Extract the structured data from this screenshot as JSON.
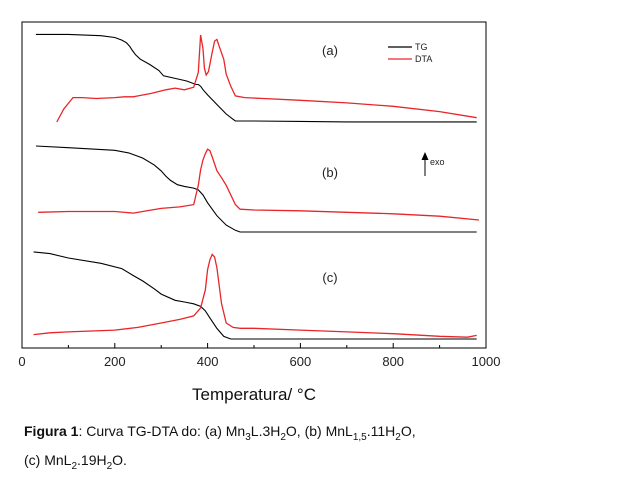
{
  "chart_data": {
    "type": "line",
    "xlabel": "Temperatura/ °C",
    "xlim": [
      0,
      1000
    ],
    "xticks": [
      "0",
      "200",
      "400",
      "600",
      "800",
      "1000"
    ],
    "xtick_values": [
      0,
      200,
      400,
      600,
      800,
      1000
    ],
    "legend": {
      "position": "top-right",
      "entries": [
        "TG",
        "DTA"
      ]
    },
    "series_colors": {
      "TG": "#000000",
      "DTA": "#e8262a"
    },
    "annotation": "exo",
    "panels": [
      {
        "label": "(a)",
        "TG": {
          "x": [
            30,
            100,
            170,
            200,
            215,
            225,
            232,
            238,
            245,
            255,
            275,
            295,
            305,
            330,
            355,
            375,
            380,
            385,
            390,
            400,
            420,
            440,
            455,
            460,
            500,
            600,
            700,
            800,
            900,
            980
          ],
          "y": [
            0.995,
            0.995,
            0.98,
            0.96,
            0.93,
            0.9,
            0.86,
            0.81,
            0.76,
            0.71,
            0.65,
            0.58,
            0.52,
            0.49,
            0.46,
            0.42,
            0.42,
            0.4,
            0.36,
            0.3,
            0.19,
            0.08,
            0.02,
            0.0,
            0.0,
            -0.005,
            -0.01,
            -0.01,
            -0.01,
            -0.01
          ]
        },
        "DTA": {
          "x": [
            75,
            90,
            110,
            130,
            160,
            200,
            220,
            240,
            250,
            280,
            310,
            330,
            350,
            370,
            380,
            385,
            390,
            393,
            397,
            402,
            410,
            415,
            420,
            425,
            435,
            440,
            450,
            460,
            480,
            520,
            600,
            700,
            800,
            900,
            980
          ],
          "y": [
            0.0,
            0.15,
            0.28,
            0.28,
            0.27,
            0.28,
            0.29,
            0.29,
            0.3,
            0.33,
            0.37,
            0.39,
            0.37,
            0.4,
            0.57,
            1.0,
            0.84,
            0.62,
            0.54,
            0.58,
            0.8,
            0.93,
            0.95,
            0.87,
            0.72,
            0.55,
            0.41,
            0.3,
            0.28,
            0.27,
            0.25,
            0.22,
            0.18,
            0.12,
            0.05
          ]
        }
      },
      {
        "label": "(b)",
        "TG": {
          "x": [
            30,
            100,
            200,
            230,
            260,
            285,
            300,
            310,
            320,
            335,
            350,
            370,
            380,
            390,
            400,
            420,
            440,
            460,
            470,
            500,
            600,
            700,
            800,
            900,
            980
          ],
          "y": [
            1.0,
            0.98,
            0.95,
            0.92,
            0.86,
            0.78,
            0.71,
            0.65,
            0.6,
            0.55,
            0.53,
            0.51,
            0.49,
            0.43,
            0.34,
            0.19,
            0.08,
            0.02,
            0.0,
            0.0,
            0.0,
            0.0,
            0.0,
            0.0,
            0.0
          ]
        },
        "DTA": {
          "x": [
            35,
            100,
            200,
            240,
            260,
            300,
            340,
            370,
            380,
            385,
            390,
            395,
            400,
            405,
            410,
            420,
            430,
            440,
            460,
            470,
            500,
            600,
            700,
            800,
            900,
            985
          ],
          "y": [
            0.1,
            0.11,
            0.11,
            0.09,
            0.11,
            0.15,
            0.17,
            0.2,
            0.45,
            0.65,
            0.78,
            0.86,
            0.92,
            0.9,
            0.82,
            0.64,
            0.55,
            0.45,
            0.2,
            0.14,
            0.13,
            0.12,
            0.1,
            0.08,
            0.05,
            0.0
          ]
        }
      },
      {
        "label": "(c)",
        "TG": {
          "x": [
            25,
            60,
            100,
            170,
            215,
            240,
            260,
            285,
            300,
            330,
            350,
            370,
            385,
            395,
            405,
            420,
            435,
            450,
            500,
            600,
            700,
            800,
            900,
            980
          ],
          "y": [
            0.99,
            0.97,
            0.92,
            0.86,
            0.8,
            0.72,
            0.66,
            0.57,
            0.51,
            0.44,
            0.42,
            0.4,
            0.37,
            0.32,
            0.24,
            0.12,
            0.03,
            0.0,
            0.0,
            0.0,
            0.0,
            0.0,
            0.0,
            0.0
          ]
        },
        "DTA": {
          "x": [
            25,
            60,
            100,
            150,
            200,
            250,
            270,
            300,
            340,
            370,
            385,
            395,
            400,
            405,
            410,
            415,
            420,
            430,
            440,
            455,
            470,
            500,
            600,
            700,
            800,
            900,
            960,
            980
          ],
          "y": [
            0.05,
            0.07,
            0.08,
            0.09,
            0.1,
            0.13,
            0.15,
            0.18,
            0.22,
            0.26,
            0.35,
            0.55,
            0.78,
            0.89,
            0.95,
            0.92,
            0.8,
            0.4,
            0.18,
            0.13,
            0.12,
            0.12,
            0.1,
            0.08,
            0.06,
            0.03,
            0.02,
            0.04
          ]
        }
      }
    ]
  },
  "caption": {
    "bold_part": "Figura 1",
    "rest_parts": [
      ": Curva TG-DTA do: (a) Mn",
      "3",
      "L.3H",
      "2",
      "O, (b) MnL",
      "1,5",
      ".11H",
      "2",
      "O,",
      "(c) MnL",
      "2",
      ".19H",
      "2",
      "O."
    ]
  }
}
